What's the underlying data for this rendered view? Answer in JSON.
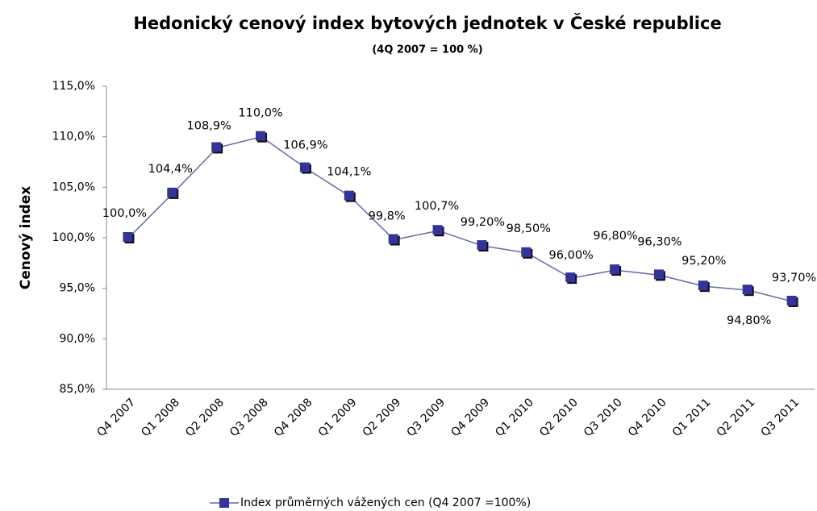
{
  "chart_data": {
    "type": "line",
    "title": "Hedonický cenový index bytových jednotek v České republice",
    "subtitle": "(4Q 2007 = 100 %)",
    "y_label": "Cenový index",
    "categories": [
      "Q4 2007",
      "Q1 2008",
      "Q2 2008",
      "Q3 2008",
      "Q4 2008",
      "Q1 2009",
      "Q2 2009",
      "Q3 2009",
      "Q4 2009",
      "Q1 2010",
      "Q2 2010",
      "Q3 2010",
      "Q4 2010",
      "Q1 2011",
      "Q2 2011",
      "Q3 2011"
    ],
    "series": [
      {
        "name": "Index průměrných vážených cen (Q4 2007 =100%)",
        "color": "#333399",
        "line_color": "#6666aa",
        "values": [
          100.0,
          104.4,
          108.9,
          110.0,
          106.9,
          104.1,
          99.8,
          100.7,
          99.2,
          98.5,
          96.0,
          96.8,
          96.3,
          95.2,
          94.8,
          93.7
        ],
        "value_labels": [
          "100,0%",
          "104,4%",
          "108,9%",
          "110,0%",
          "106,9%",
          "104,1%",
          "99,8%",
          "100,7%",
          "99,20%",
          "98,50%",
          "96,00%",
          "96,80%",
          "96,30%",
          "95,20%",
          "94,80%",
          "93,70%"
        ]
      }
    ],
    "ylim": [
      85,
      115
    ],
    "yticks": [
      {
        "value": 85,
        "label": "85,0%"
      },
      {
        "value": 90,
        "label": "90,0%"
      },
      {
        "value": 95,
        "label": "95,0%"
      },
      {
        "value": 100,
        "label": "100,0%"
      },
      {
        "value": 105,
        "label": "105,0%"
      },
      {
        "value": 110,
        "label": "110,0%"
      },
      {
        "value": 115,
        "label": "115,0%"
      }
    ],
    "grid": false
  }
}
